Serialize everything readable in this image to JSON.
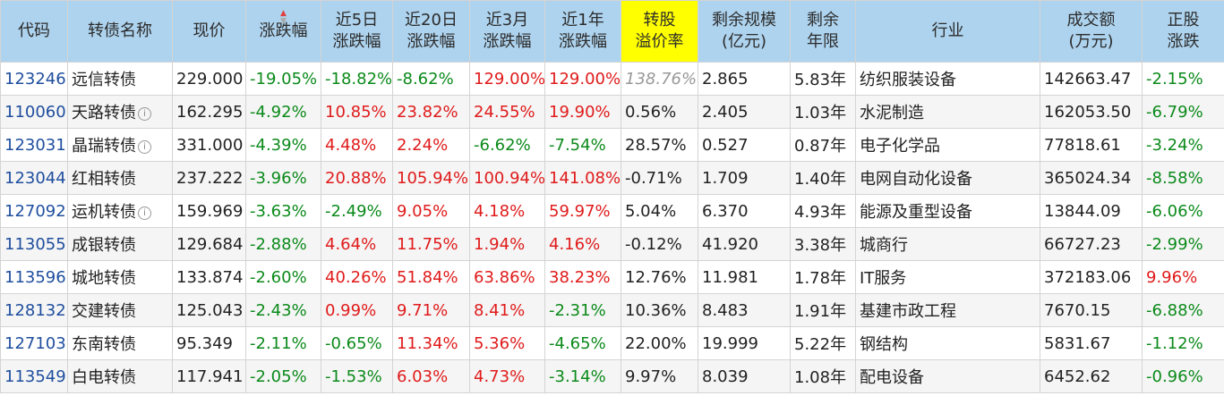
{
  "colors": {
    "header_bg": "#aed3ee",
    "highlight_header": "#ffff00",
    "rise": "#e01b1b",
    "fall": "#0b8a1a",
    "code": "#1f4e9e"
  },
  "headers": [
    [
      "代码"
    ],
    [
      "转债名称"
    ],
    [
      "现价"
    ],
    [
      "涨跌幅"
    ],
    [
      "近5日",
      "涨跌幅"
    ],
    [
      "近20日",
      "涨跌幅"
    ],
    [
      "近3月",
      "涨跌幅"
    ],
    [
      "近1年",
      "涨跌幅"
    ],
    [
      "转股",
      "溢价率"
    ],
    [
      "剩余规模",
      "(亿元)"
    ],
    [
      "剩余",
      "年限"
    ],
    [
      "行业"
    ],
    [
      "成交额",
      "(万元)"
    ],
    [
      "正股",
      "涨跌"
    ]
  ],
  "sort": {
    "column": "涨跌幅",
    "direction": "desc",
    "icon": "sort-arrows-icon"
  },
  "rows": [
    {
      "code": "123246",
      "name": "远信转债",
      "info": false,
      "price": "229.000",
      "chg": "-19.05%",
      "chg5": "-18.82%",
      "chg20": "-8.62%",
      "chg3m": "129.00%",
      "chg1y": "129.00%",
      "premium": "138.76%",
      "size": "2.865",
      "years": "5.83年",
      "industry": "纺织服装设备",
      "turnover": "142663.47",
      "stock": "-2.15%"
    },
    {
      "code": "110060",
      "name": "天路转债",
      "info": true,
      "price": "162.295",
      "chg": "-4.92%",
      "chg5": "10.85%",
      "chg20": "23.82%",
      "chg3m": "24.55%",
      "chg1y": "19.90%",
      "premium": "0.56%",
      "size": "2.405",
      "years": "1.03年",
      "industry": "水泥制造",
      "turnover": "162053.50",
      "stock": "-6.79%"
    },
    {
      "code": "123031",
      "name": "晶瑞转债",
      "info": true,
      "price": "331.000",
      "chg": "-4.39%",
      "chg5": "4.48%",
      "chg20": "2.24%",
      "chg3m": "-6.62%",
      "chg1y": "-7.54%",
      "premium": "28.57%",
      "size": "0.527",
      "years": "0.87年",
      "industry": "电子化学品",
      "turnover": "77818.61",
      "stock": "-3.24%"
    },
    {
      "code": "123044",
      "name": "红相转债",
      "info": false,
      "price": "237.222",
      "chg": "-3.96%",
      "chg5": "20.88%",
      "chg20": "105.94%",
      "chg3m": "100.94%",
      "chg1y": "141.08%",
      "premium": "-0.71%",
      "size": "1.709",
      "years": "1.40年",
      "industry": "电网自动化设备",
      "turnover": "365024.34",
      "stock": "-8.58%"
    },
    {
      "code": "127092",
      "name": "运机转债",
      "info": true,
      "price": "159.969",
      "chg": "-3.63%",
      "chg5": "-2.49%",
      "chg20": "9.05%",
      "chg3m": "4.18%",
      "chg1y": "59.97%",
      "premium": "5.04%",
      "size": "6.370",
      "years": "4.93年",
      "industry": "能源及重型设备",
      "turnover": "13844.09",
      "stock": "-6.06%"
    },
    {
      "code": "113055",
      "name": "成银转债",
      "info": false,
      "price": "129.684",
      "chg": "-2.88%",
      "chg5": "4.64%",
      "chg20": "11.75%",
      "chg3m": "1.94%",
      "chg1y": "4.16%",
      "premium": "-0.12%",
      "size": "41.920",
      "years": "3.38年",
      "industry": "城商行",
      "turnover": "66727.23",
      "stock": "-2.99%"
    },
    {
      "code": "113596",
      "name": "城地转债",
      "info": false,
      "price": "133.874",
      "chg": "-2.60%",
      "chg5": "40.26%",
      "chg20": "51.84%",
      "chg3m": "63.86%",
      "chg1y": "38.23%",
      "premium": "12.76%",
      "size": "11.981",
      "years": "1.78年",
      "industry": "IT服务",
      "turnover": "372183.06",
      "stock": "9.96%"
    },
    {
      "code": "128132",
      "name": "交建转债",
      "info": false,
      "price": "125.043",
      "chg": "-2.43%",
      "chg5": "0.99%",
      "chg20": "9.71%",
      "chg3m": "8.41%",
      "chg1y": "-2.31%",
      "premium": "10.36%",
      "size": "8.483",
      "years": "1.91年",
      "industry": "基建市政工程",
      "turnover": "7670.15",
      "stock": "-6.88%"
    },
    {
      "code": "127103",
      "name": "东南转债",
      "info": false,
      "price": "95.349",
      "chg": "-2.11%",
      "chg5": "-0.65%",
      "chg20": "11.34%",
      "chg3m": "5.36%",
      "chg1y": "-4.65%",
      "premium": "22.00%",
      "size": "19.999",
      "years": "5.22年",
      "industry": "钢结构",
      "turnover": "5831.67",
      "stock": "-1.12%"
    },
    {
      "code": "113549",
      "name": "白电转债",
      "info": false,
      "price": "117.941",
      "chg": "-2.05%",
      "chg5": "-1.53%",
      "chg20": "6.03%",
      "chg3m": "4.73%",
      "chg1y": "-3.14%",
      "premium": "9.97%",
      "size": "8.039",
      "years": "1.08年",
      "industry": "配电设备",
      "turnover": "6452.62",
      "stock": "-0.96%"
    }
  ]
}
